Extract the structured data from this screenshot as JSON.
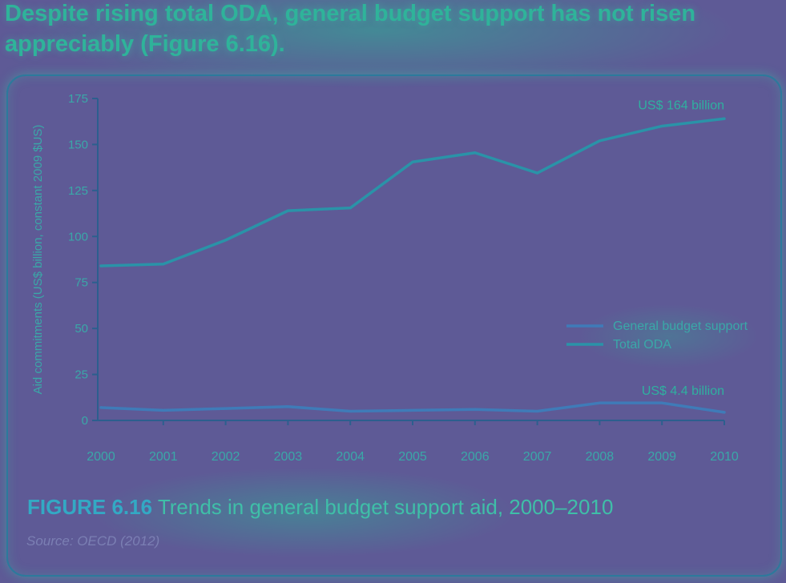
{
  "headline": "Despite rising total ODA, general budget support has not risen appreciably (Figure 6.16).",
  "caption": {
    "figure_label": "FIGURE 6.16",
    "title": "Trends in general budget support aid, 2000–2010"
  },
  "source": "Source: OECD (2012)",
  "colors": {
    "total_oda": "#2a93a8",
    "general_budget_support": "#3f7bb8",
    "axis": "#2c5f8e",
    "tick_text": "#3aa8a8",
    "annotation": "#2fb0a0"
  },
  "chart_data": {
    "type": "line",
    "ylabel": "Aid commitments (US$ billion, constant 2009 $US)",
    "xlabel": "",
    "x": [
      "2000",
      "2001",
      "2002",
      "2003",
      "2004",
      "2005",
      "2006",
      "2007",
      "2008",
      "2009",
      "2010"
    ],
    "ylim": [
      0,
      175
    ],
    "yticks": [
      0,
      25,
      50,
      75,
      100,
      125,
      150,
      175
    ],
    "grid": false,
    "legend_position": "right",
    "series": [
      {
        "name": "General budget support",
        "values": [
          7,
          5.5,
          6.5,
          7.5,
          5,
          5.5,
          6,
          5,
          9.5,
          9.5,
          4.4
        ]
      },
      {
        "name": "Total ODA",
        "values": [
          84,
          85,
          98,
          114,
          115.5,
          140.5,
          145.5,
          134.5,
          152,
          160,
          164
        ]
      }
    ],
    "annotations": [
      {
        "text": "US$ 164 billion",
        "series": "Total ODA",
        "x": "2010"
      },
      {
        "text": "US$ 4.4 billion",
        "series": "General budget support",
        "x": "2010"
      }
    ]
  }
}
